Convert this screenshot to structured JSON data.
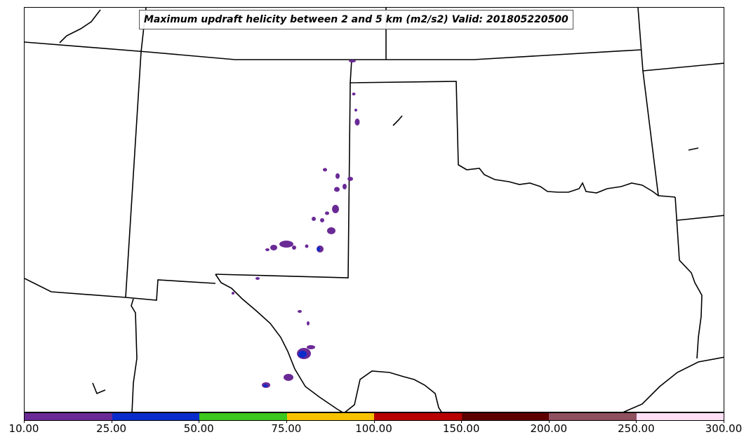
{
  "title": "Maximum updraft helicity between 2 and 5 km (m2/s2) Valid: 201805220500",
  "colorbar": {
    "levels": [
      "10.00",
      "25.00",
      "50.00",
      "75.00",
      "100.00",
      "150.00",
      "200.00",
      "250.00",
      "300.00"
    ],
    "colors": [
      "#6a2a96",
      "#0a2ccc",
      "#3cc81c",
      "#f7c200",
      "#b80000",
      "#5e0000",
      "#8f5060",
      "#fde0f6"
    ]
  },
  "map": {
    "region": "Southern Plains US state boundaries",
    "features": [
      "state-borders",
      "coastline",
      "Red River boundary",
      "Rio Grande boundary"
    ],
    "storm_cell_color_low": "#6a2a96",
    "storm_cell_color_mid": "#0a2ccc"
  }
}
